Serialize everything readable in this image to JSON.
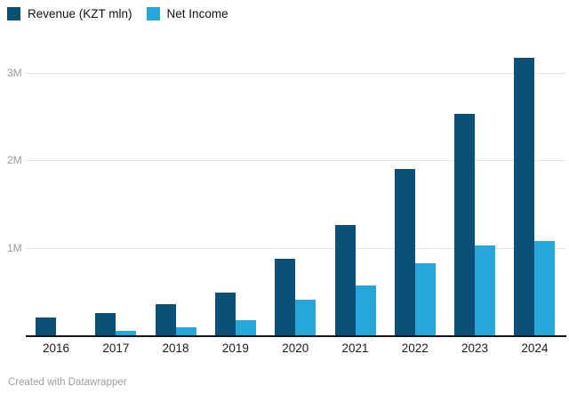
{
  "footer": {
    "credit": "Created with Datawrapper"
  },
  "colors": {
    "revenue": "#0b5077",
    "net_income": "#27a6d9",
    "gridline": "#e2e2e2",
    "axis_line": "#151515",
    "y_tick_label": "#9a9a9a",
    "x_tick_label": "#1a1a1a",
    "background": "#ffffff"
  },
  "chart_data": {
    "type": "bar",
    "title": "",
    "xlabel": "",
    "ylabel": "",
    "categories": [
      "2016",
      "2017",
      "2018",
      "2019",
      "2020",
      "2021",
      "2022",
      "2023",
      "2024"
    ],
    "series": [
      {
        "name": "Revenue (KZT mln)",
        "color": "#0b5077",
        "values": [
          210000,
          260000,
          360000,
          500000,
          880000,
          1270000,
          1900000,
          2530000,
          3170000
        ]
      },
      {
        "name": "Net Income",
        "color": "#27a6d9",
        "values": [
          0,
          60000,
          100000,
          185000,
          420000,
          580000,
          830000,
          1030000,
          1080000
        ]
      }
    ],
    "ylim": [
      0,
      3400000
    ],
    "y_ticks": [
      {
        "value": 1000000,
        "label": "1M"
      },
      {
        "value": 2000000,
        "label": "2M"
      },
      {
        "value": 3000000,
        "label": "3M"
      }
    ],
    "grid": "horizontal",
    "legend_position": "top-left",
    "attribution": "Created with Datawrapper"
  }
}
